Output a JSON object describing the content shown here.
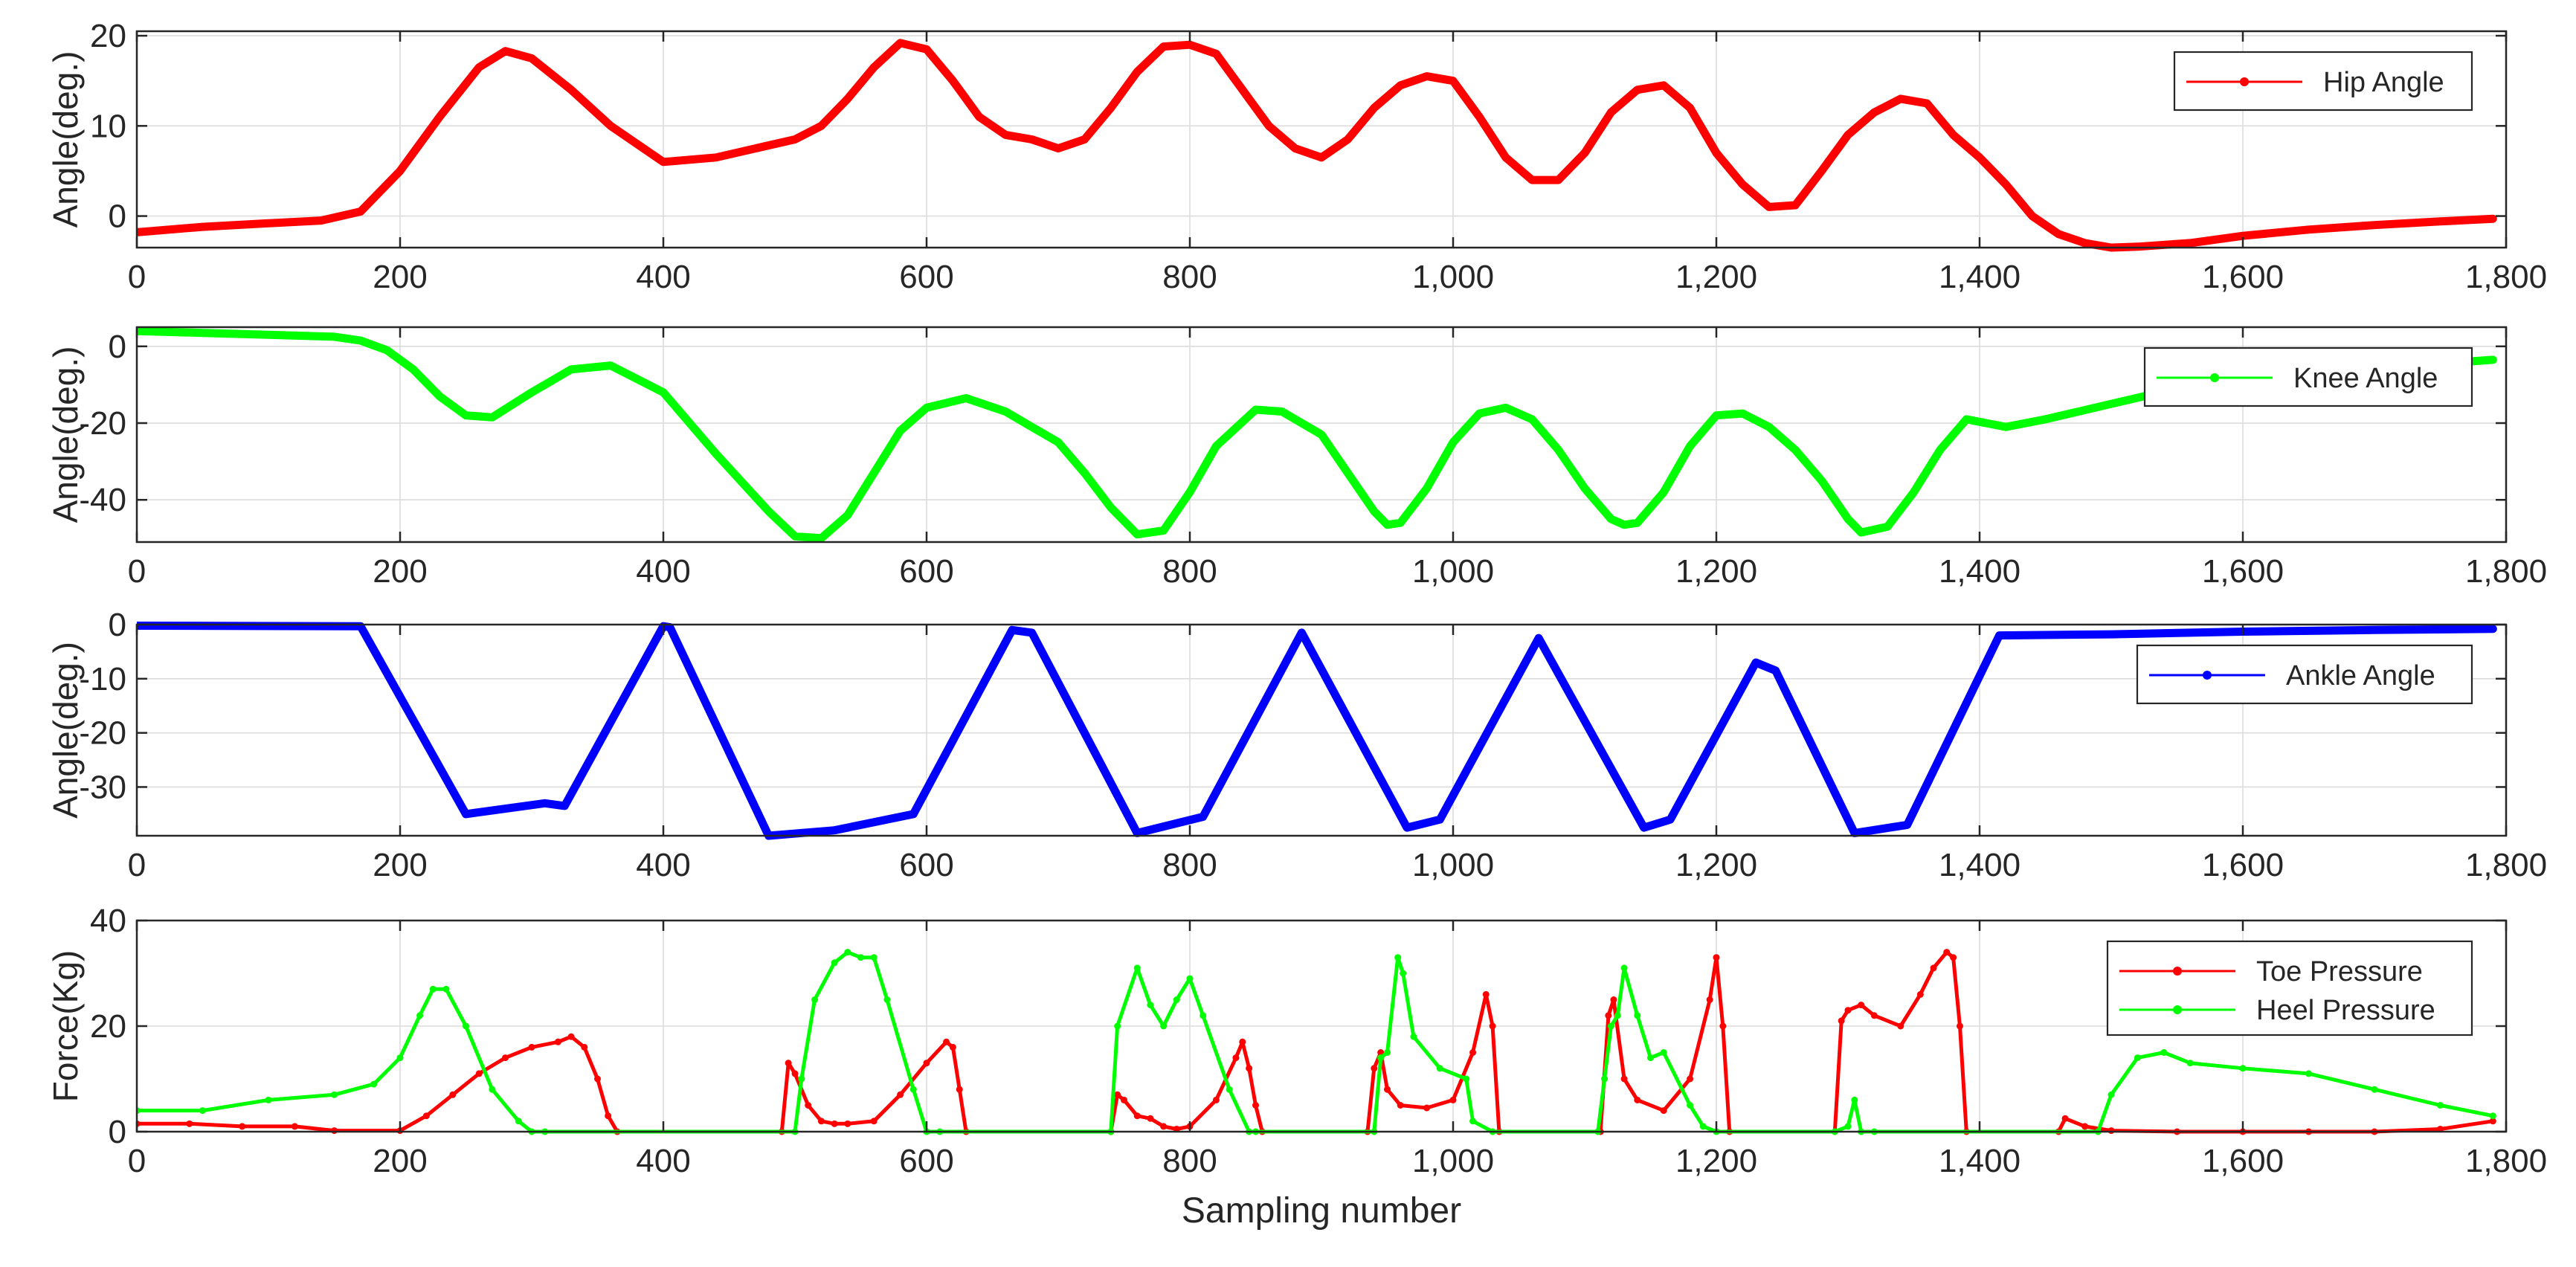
{
  "chart_data": [
    {
      "type": "line",
      "ylabel": "Angle(deg.)",
      "xlabel": "",
      "xlim": [
        0,
        1800
      ],
      "ylim": [
        -3.5,
        20.5
      ],
      "xticks": [
        0,
        200,
        400,
        600,
        800,
        1000,
        1200,
        1400,
        1600,
        1800
      ],
      "xtick_labels": [
        "0",
        "200",
        "400",
        "600",
        "800",
        "1,000",
        "1,200",
        "1,400",
        "1,600",
        "1,800"
      ],
      "yticks": [
        0,
        10,
        20
      ],
      "ytick_labels": [
        "0",
        "10",
        "20"
      ],
      "grid": true,
      "legend": "top-right",
      "series": [
        {
          "name": "Hip Angle",
          "color": "#ff0000",
          "x": [
            0,
            50,
            100,
            140,
            170,
            200,
            230,
            260,
            280,
            300,
            330,
            360,
            400,
            440,
            470,
            500,
            520,
            540,
            560,
            580,
            600,
            620,
            640,
            660,
            680,
            700,
            720,
            740,
            760,
            780,
            800,
            820,
            840,
            860,
            880,
            900,
            920,
            940,
            960,
            980,
            1000,
            1020,
            1040,
            1060,
            1080,
            1100,
            1120,
            1140,
            1160,
            1180,
            1200,
            1220,
            1240,
            1260,
            1280,
            1300,
            1320,
            1340,
            1360,
            1380,
            1400,
            1420,
            1440,
            1460,
            1480,
            1500,
            1520,
            1560,
            1600,
            1650,
            1700,
            1750,
            1790
          ],
          "values": [
            -1.8,
            -1.2,
            -0.8,
            -0.5,
            0.5,
            5,
            11,
            16.5,
            18.3,
            17.5,
            14,
            10,
            6,
            6.5,
            7.5,
            8.5,
            10,
            13,
            16.5,
            19.2,
            18.5,
            15,
            11,
            9,
            8.5,
            7.5,
            8.5,
            12,
            16,
            18.8,
            19,
            18,
            14,
            10,
            7.5,
            6.5,
            8.5,
            12,
            14.5,
            15.5,
            15,
            11,
            6.5,
            4,
            4,
            7,
            11.5,
            14,
            14.5,
            12,
            7,
            3.5,
            1,
            1.2,
            5,
            9,
            11.5,
            13,
            12.5,
            9,
            6.5,
            3.5,
            0,
            -2,
            -3,
            -3.5,
            -3.4,
            -3,
            -2.2,
            -1.5,
            -1,
            -0.6,
            -0.3
          ]
        }
      ]
    },
    {
      "type": "line",
      "ylabel": "Angle(deg.)",
      "xlabel": "",
      "xlim": [
        0,
        1800
      ],
      "ylim": [
        -51,
        5
      ],
      "xticks": [
        0,
        200,
        400,
        600,
        800,
        1000,
        1200,
        1400,
        1600,
        1800
      ],
      "xtick_labels": [
        "0",
        "200",
        "400",
        "600",
        "800",
        "1,000",
        "1,200",
        "1,400",
        "1,600",
        "1,800"
      ],
      "yticks": [
        0,
        -20,
        -40
      ],
      "ytick_labels": [
        "0",
        "-20",
        "-40"
      ],
      "grid": true,
      "legend": "top-right",
      "series": [
        {
          "name": "Knee Angle",
          "color": "#00ff00",
          "x": [
            0,
            50,
            100,
            150,
            170,
            190,
            210,
            230,
            250,
            270,
            300,
            330,
            360,
            400,
            440,
            480,
            500,
            520,
            540,
            560,
            580,
            600,
            630,
            660,
            680,
            700,
            720,
            740,
            760,
            780,
            800,
            820,
            850,
            870,
            900,
            920,
            940,
            950,
            960,
            980,
            1000,
            1020,
            1040,
            1060,
            1080,
            1100,
            1120,
            1130,
            1140,
            1160,
            1180,
            1200,
            1220,
            1240,
            1260,
            1280,
            1300,
            1310,
            1330,
            1350,
            1370,
            1390,
            1420,
            1450,
            1500,
            1550,
            1600,
            1650,
            1700,
            1750,
            1790
          ],
          "values": [
            4,
            3.5,
            3,
            2.5,
            1.5,
            -1,
            -6,
            -13,
            -18,
            -18.5,
            -12,
            -6,
            -5,
            -12,
            -28,
            -43,
            -49.5,
            -50,
            -44,
            -33,
            -22,
            -16,
            -13.5,
            -17,
            -21,
            -25,
            -33,
            -42,
            -49,
            -48,
            -38,
            -26,
            -16.5,
            -17,
            -23,
            -33,
            -43,
            -46.5,
            -46,
            -37,
            -25,
            -17.5,
            -16,
            -19,
            -27,
            -37,
            -45,
            -46.5,
            -46,
            -38,
            -26,
            -18,
            -17.5,
            -21,
            -27,
            -35,
            -45,
            -48.5,
            -47,
            -38,
            -27,
            -19,
            -21,
            -19,
            -15,
            -11,
            -8,
            -6,
            -5,
            -4.5,
            -3.5
          ]
        }
      ]
    },
    {
      "type": "line",
      "ylabel": "Angle(deg.)",
      "xlabel": "",
      "xlim": [
        0,
        1800
      ],
      "ylim": [
        -39,
        0
      ],
      "xticks": [
        0,
        200,
        400,
        600,
        800,
        1000,
        1200,
        1400,
        1600,
        1800
      ],
      "xtick_labels": [
        "0",
        "200",
        "400",
        "600",
        "800",
        "1,000",
        "1,200",
        "1,400",
        "1,600",
        "1,800"
      ],
      "yticks": [
        0,
        -10,
        -20,
        -30
      ],
      "ytick_labels": [
        "0",
        "-10",
        "-20",
        "-30"
      ],
      "grid": true,
      "legend": "top-right",
      "series": [
        {
          "name": "Ankle Angle",
          "color": "#0000ff",
          "x": [
            0,
            170,
            250,
            310,
            325,
            400,
            405,
            480,
            530,
            590,
            665,
            680,
            760,
            810,
            885,
            965,
            990,
            1065,
            1145,
            1165,
            1230,
            1245,
            1305,
            1345,
            1415,
            1500,
            1600,
            1700,
            1790
          ],
          "values": [
            -0.2,
            -0.3,
            -35,
            -33,
            -33.5,
            -0.3,
            -0.5,
            -39,
            -38,
            -35,
            -1,
            -1.5,
            -38.5,
            -35.5,
            -1.5,
            -37.5,
            -36,
            -2.5,
            -37.5,
            -36,
            -7,
            -8.5,
            -38.5,
            -37,
            -2,
            -1.8,
            -1.3,
            -1,
            -0.8
          ]
        }
      ]
    },
    {
      "type": "line",
      "ylabel": "Force(Kg)",
      "xlabel": "Sampling number",
      "xlim": [
        0,
        1800
      ],
      "ylim": [
        0,
        40
      ],
      "xticks": [
        0,
        200,
        400,
        600,
        800,
        1000,
        1200,
        1400,
        1600,
        1800
      ],
      "xtick_labels": [
        "0",
        "200",
        "400",
        "600",
        "800",
        "1,000",
        "1,200",
        "1,400",
        "1,600",
        "1,800"
      ],
      "yticks": [
        0,
        20,
        40
      ],
      "ytick_labels": [
        "0",
        "20",
        "40"
      ],
      "grid": true,
      "legend": "top-right",
      "series": [
        {
          "name": "Toe Pressure",
          "color": "#ff0000",
          "x": [
            0,
            40,
            80,
            120,
            150,
            200,
            220,
            240,
            260,
            280,
            300,
            320,
            330,
            340,
            350,
            358,
            365,
            490,
            495,
            500,
            510,
            520,
            530,
            540,
            560,
            580,
            600,
            615,
            620,
            625,
            630,
            740,
            745,
            750,
            760,
            770,
            780,
            790,
            800,
            820,
            835,
            840,
            845,
            850,
            855,
            935,
            940,
            945,
            950,
            960,
            980,
            1000,
            1015,
            1025,
            1030,
            1035,
            1112,
            1118,
            1122,
            1130,
            1140,
            1160,
            1180,
            1195,
            1200,
            1205,
            1210,
            1290,
            1295,
            1300,
            1310,
            1320,
            1340,
            1355,
            1365,
            1375,
            1380,
            1385,
            1390,
            1460,
            1465,
            1480,
            1500,
            1550,
            1600,
            1650,
            1700,
            1750,
            1790
          ],
          "values": [
            1.5,
            1.5,
            1,
            1,
            0.2,
            0.2,
            3,
            7,
            11,
            14,
            16,
            17,
            18,
            16,
            10,
            3,
            0,
            0,
            13,
            11,
            5,
            2,
            1.5,
            1.5,
            2,
            7,
            13,
            17,
            16,
            8,
            0,
            0,
            7,
            6,
            3,
            2.5,
            1,
            0.5,
            1,
            6,
            14,
            17,
            12,
            5,
            0,
            0,
            12,
            15,
            8,
            5,
            4.5,
            6,
            15,
            26,
            20,
            0,
            0,
            22,
            25,
            10,
            6,
            4,
            10,
            25,
            33,
            20,
            0,
            0,
            21,
            23,
            24,
            22,
            20,
            26,
            31,
            34,
            33,
            20,
            0,
            0,
            2.5,
            1,
            0.2,
            0,
            0,
            0,
            0,
            0.5,
            2
          ]
        },
        {
          "name": "Heel Pressure",
          "color": "#00ff00",
          "x": [
            0,
            50,
            100,
            150,
            180,
            200,
            215,
            225,
            235,
            250,
            270,
            290,
            300,
            310,
            500,
            505,
            515,
            530,
            540,
            550,
            560,
            570,
            590,
            600,
            610,
            740,
            745,
            760,
            770,
            780,
            790,
            800,
            810,
            830,
            845,
            850,
            940,
            945,
            950,
            958,
            962,
            970,
            990,
            1010,
            1015,
            1030,
            1110,
            1115,
            1120,
            1125,
            1130,
            1140,
            1150,
            1160,
            1180,
            1190,
            1200,
            1290,
            1300,
            1305,
            1310,
            1320,
            1490,
            1500,
            1520,
            1540,
            1560,
            1600,
            1650,
            1700,
            1750,
            1790
          ],
          "values": [
            4,
            4,
            6,
            7,
            9,
            14,
            22,
            27,
            27,
            20,
            8,
            2,
            0,
            0,
            0,
            10,
            25,
            32,
            34,
            33,
            33,
            25,
            8,
            0,
            0,
            0,
            20,
            31,
            24,
            20,
            25,
            29,
            22,
            8,
            0,
            0,
            0,
            14,
            15,
            33,
            30,
            18,
            12,
            10,
            2,
            0,
            0,
            10,
            20,
            22,
            31,
            22,
            14,
            15,
            5,
            1,
            0,
            0,
            1,
            6,
            0,
            0,
            0,
            7,
            14,
            15,
            13,
            12,
            11,
            8,
            5,
            3
          ]
        }
      ]
    }
  ]
}
